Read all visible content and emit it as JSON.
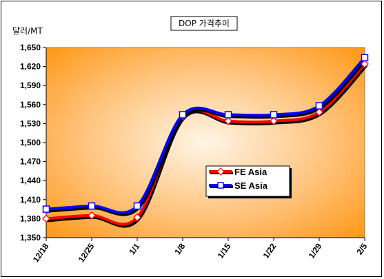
{
  "chart_data": {
    "type": "line",
    "title": "DOP 가격추이",
    "ylabel": "달러/MT",
    "xlabel": "",
    "categories": [
      "12/18",
      "12/25",
      "1/1",
      "1/8",
      "1/15",
      "1/22",
      "1/29",
      "2/5"
    ],
    "ylim": [
      1350,
      1650
    ],
    "yticks": [
      1350,
      1380,
      1410,
      1440,
      1470,
      1500,
      1530,
      1560,
      1590,
      1620,
      1650
    ],
    "grid": false,
    "legend_position": "center-right",
    "series": [
      {
        "name": "FE Asia",
        "values": [
          1380,
          1385,
          1382,
          1542,
          1534,
          1534,
          1548,
          1624
        ],
        "color": "#ff0000",
        "marker": "diamond"
      },
      {
        "name": "SE Asia",
        "values": [
          1395,
          1400,
          1400,
          1544,
          1544,
          1544,
          1558,
          1634
        ],
        "color": "#0000ff",
        "marker": "square"
      }
    ],
    "colors": {
      "plot_gradient_center": "#fff5e6",
      "plot_gradient_edge": "#ff9510"
    }
  }
}
